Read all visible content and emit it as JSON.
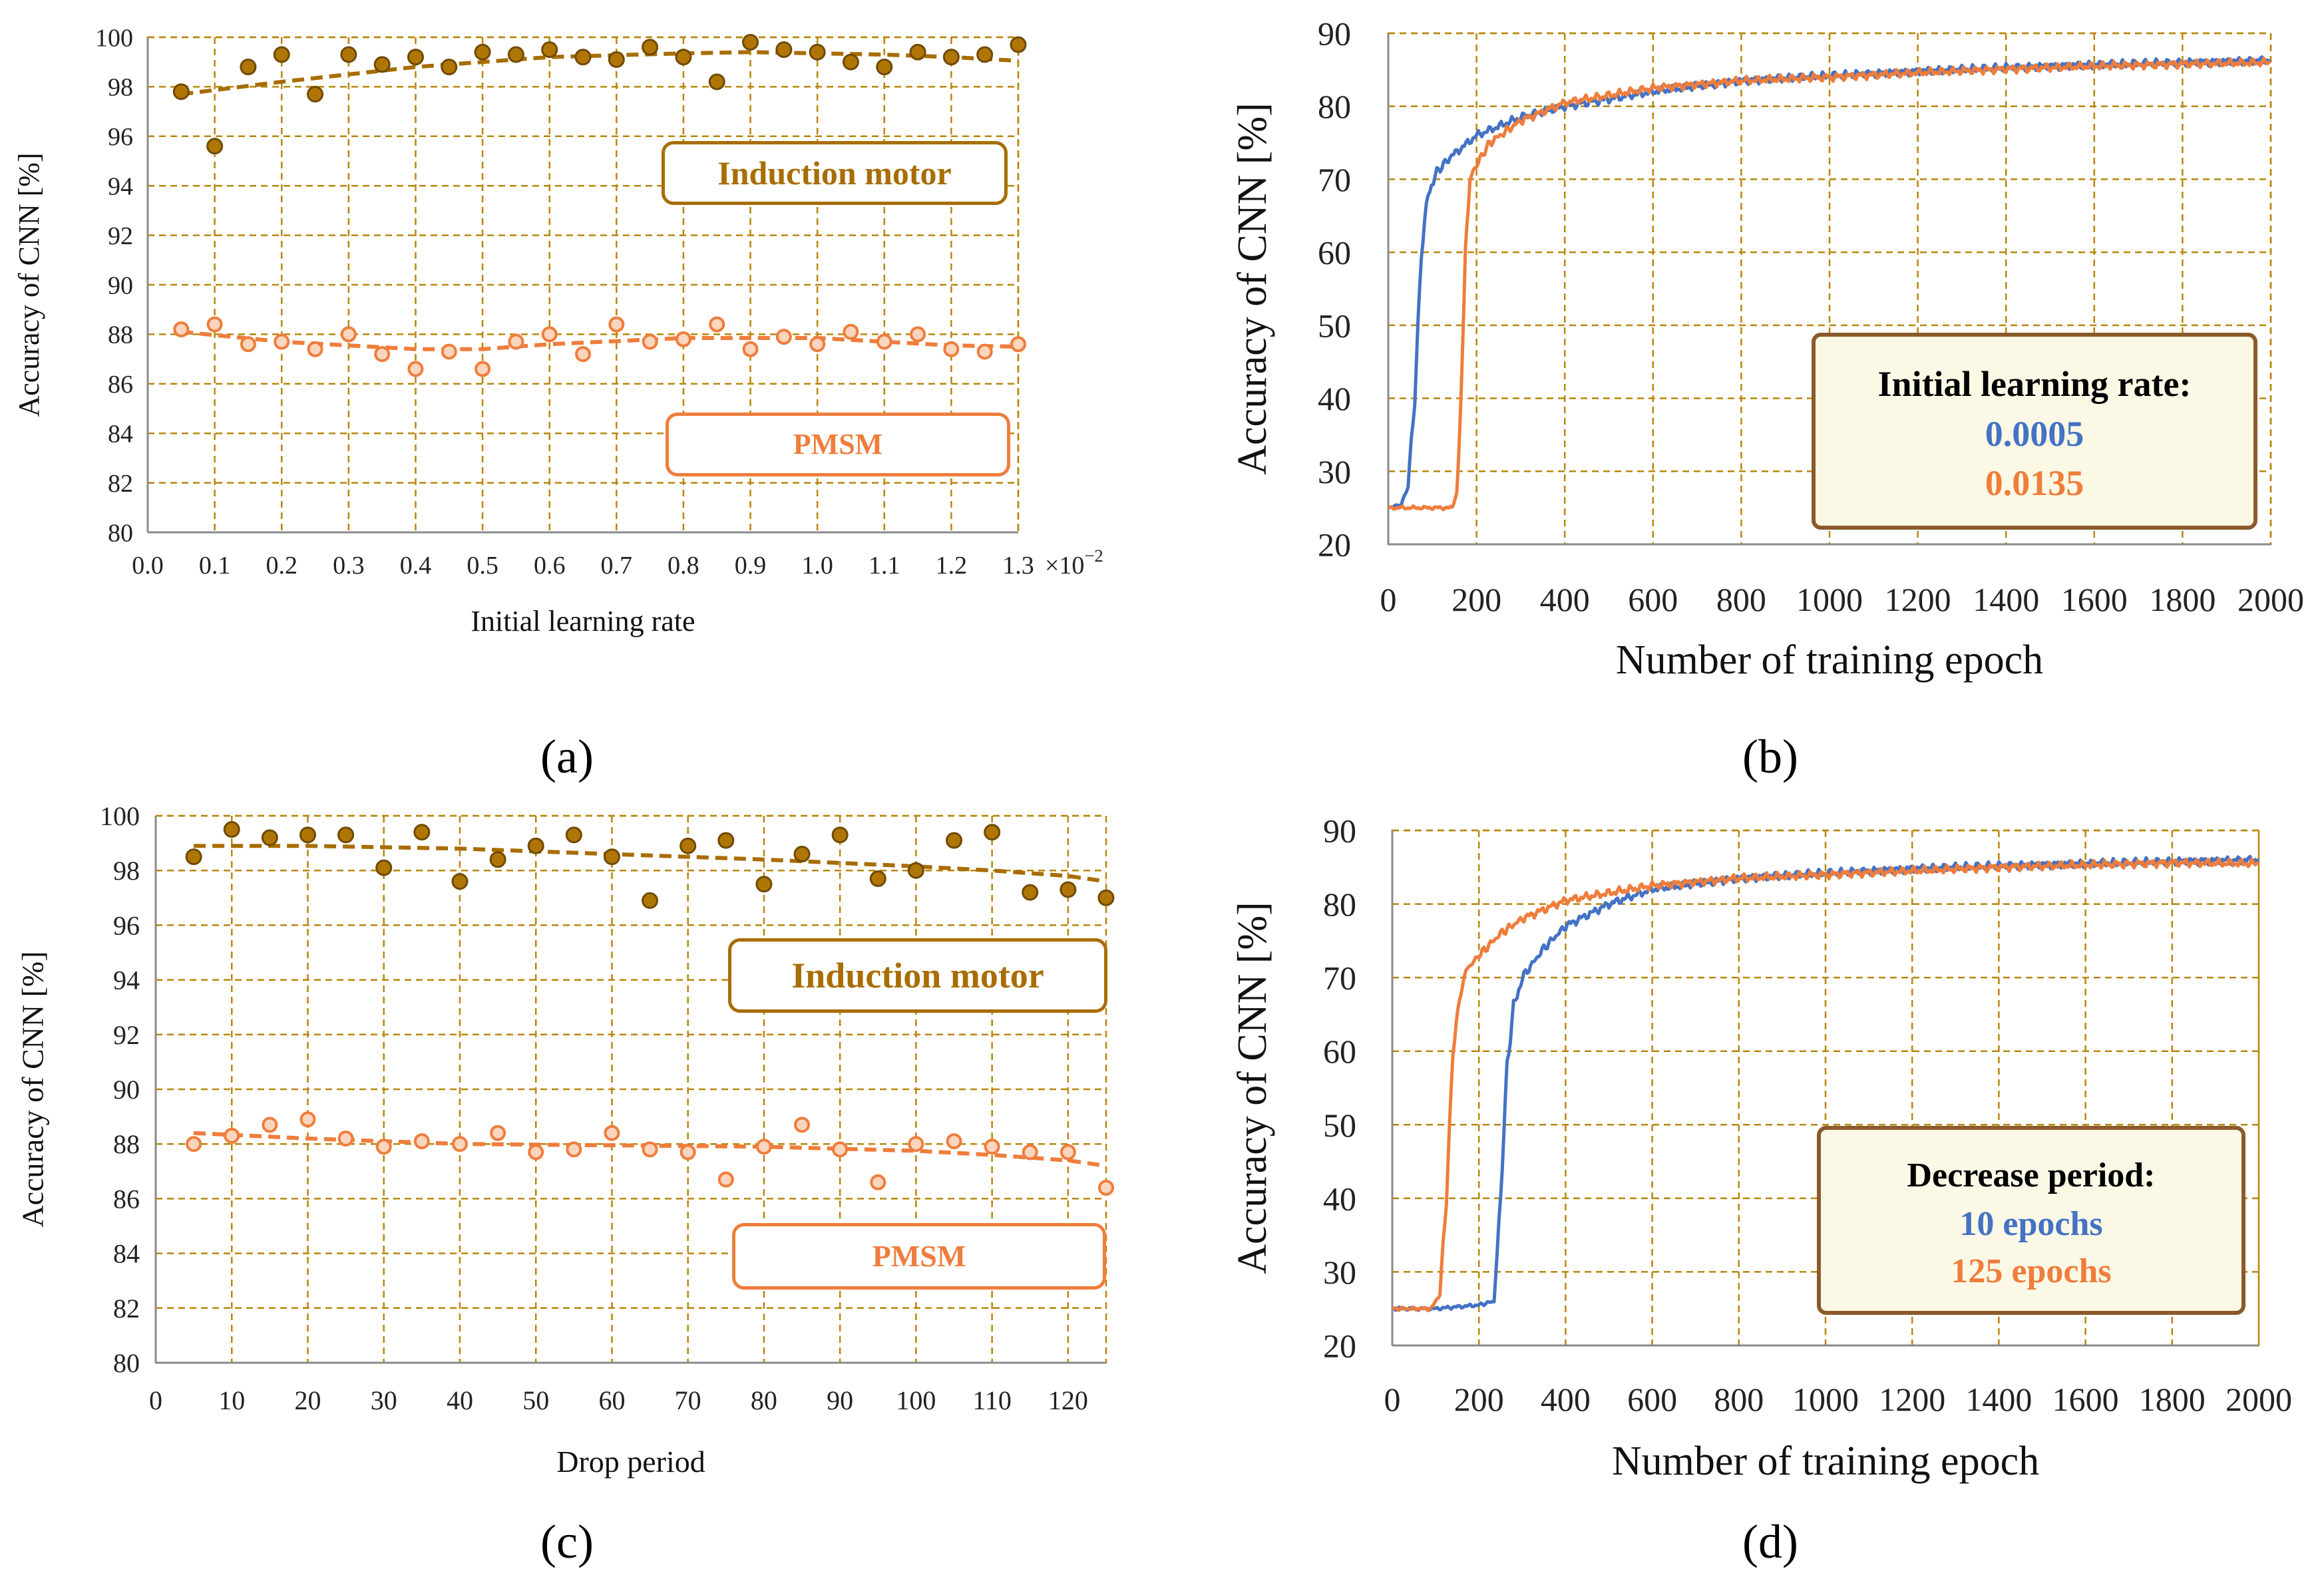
{
  "colors": {
    "induction": "#a86d00",
    "induction_fill": "#b07605",
    "pmsm": "#ef7d3c",
    "blue": "#4472c4",
    "grid": "#b8860b",
    "legend_border": "#8b5a2b"
  },
  "panel_labels": [
    "(a)",
    "(b)",
    "(c)",
    "(d)"
  ],
  "chart_data": [
    {
      "id": "a",
      "type": "scatter",
      "xlabel": "Initial learning rate",
      "ylabel": "Accuracy of CNN [%]",
      "x_multiplier": "×10",
      "x_multiplier_exp": "−2",
      "xlim": [
        0.0,
        1.3
      ],
      "ylim": [
        80,
        100
      ],
      "x_ticks": [
        "0.0",
        "0.1",
        "0.2",
        "0.3",
        "0.4",
        "0.5",
        "0.6",
        "0.7",
        "0.8",
        "0.9",
        "1.0",
        "1.1",
        "1.2",
        "1.3"
      ],
      "y_ticks": [
        "80",
        "82",
        "84",
        "86",
        "88",
        "90",
        "92",
        "94",
        "96",
        "98",
        "100"
      ],
      "series_labels": [
        "Induction motor",
        "PMSM"
      ],
      "series": [
        {
          "name": "Induction motor",
          "x": [
            0.05,
            0.1,
            0.15,
            0.2,
            0.25,
            0.3,
            0.35,
            0.4,
            0.45,
            0.5,
            0.55,
            0.6,
            0.65,
            0.7,
            0.75,
            0.8,
            0.85,
            0.9,
            0.95,
            1.0,
            1.05,
            1.1,
            1.15,
            1.2,
            1.25,
            1.3
          ],
          "y": [
            97.8,
            95.6,
            98.8,
            99.3,
            97.7,
            99.3,
            98.9,
            99.2,
            98.8,
            99.4,
            99.3,
            99.5,
            99.2,
            99.1,
            99.6,
            99.2,
            98.2,
            99.8,
            99.5,
            99.4,
            99.0,
            98.8,
            99.4,
            99.2,
            99.3,
            99.7
          ],
          "trend_x": [
            0.05,
            0.2,
            0.4,
            0.6,
            0.8,
            0.9,
            1.0,
            1.1,
            1.2,
            1.3
          ],
          "trend_y": [
            97.7,
            98.2,
            98.8,
            99.2,
            99.35,
            99.4,
            99.35,
            99.3,
            99.2,
            99.05
          ]
        },
        {
          "name": "PMSM",
          "x": [
            0.05,
            0.1,
            0.15,
            0.2,
            0.25,
            0.3,
            0.35,
            0.4,
            0.45,
            0.5,
            0.55,
            0.6,
            0.65,
            0.7,
            0.75,
            0.8,
            0.85,
            0.9,
            0.95,
            1.0,
            1.05,
            1.1,
            1.15,
            1.2,
            1.25,
            1.3
          ],
          "y": [
            88.2,
            88.4,
            87.6,
            87.7,
            87.4,
            88.0,
            87.2,
            86.6,
            87.3,
            86.6,
            87.7,
            88.0,
            87.2,
            88.4,
            87.7,
            87.8,
            88.4,
            87.4,
            87.9,
            87.6,
            88.1,
            87.7,
            88.0,
            87.4,
            87.3,
            87.6
          ],
          "trend_x": [
            0.05,
            0.2,
            0.4,
            0.5,
            0.6,
            0.8,
            1.0,
            1.1,
            1.2,
            1.3
          ],
          "trend_y": [
            88.1,
            87.7,
            87.4,
            87.4,
            87.6,
            87.85,
            87.85,
            87.7,
            87.55,
            87.5
          ]
        }
      ]
    },
    {
      "id": "b",
      "type": "line",
      "xlabel": "Number of training epoch",
      "ylabel": "Accuracy of  CNN [%]",
      "xlim": [
        0,
        2000
      ],
      "ylim": [
        20,
        90
      ],
      "x_ticks": [
        "0",
        "200",
        "400",
        "600",
        "800",
        "1000",
        "1200",
        "1400",
        "1600",
        "1800",
        "2000"
      ],
      "y_ticks": [
        "20",
        "30",
        "40",
        "50",
        "60",
        "70",
        "80",
        "90"
      ],
      "legend": {
        "title": "Initial learning rate:",
        "entries": [
          "0.0005",
          "0.0135"
        ]
      },
      "series": [
        {
          "name": "0.0005",
          "x": [
            0,
            30,
            45,
            60,
            75,
            90,
            110,
            140,
            200,
            300,
            400,
            600,
            800,
            1000,
            1200,
            1400,
            1600,
            1800,
            2000
          ],
          "y": [
            25,
            25.5,
            28,
            40,
            60,
            68,
            71,
            73,
            76,
            78.5,
            80,
            82,
            83.5,
            84.2,
            84.8,
            85.3,
            85.7,
            86,
            86.3
          ]
        },
        {
          "name": "0.0135",
          "x": [
            0,
            145,
            155,
            165,
            175,
            185,
            200,
            230,
            300,
            400,
            600,
            800,
            1000,
            1200,
            1400,
            1600,
            1800,
            2000
          ],
          "y": [
            25,
            25,
            27,
            40,
            60,
            70,
            72,
            75,
            78,
            80.5,
            82.5,
            83.5,
            84,
            84.6,
            85.1,
            85.5,
            85.8,
            86
          ]
        }
      ]
    },
    {
      "id": "c",
      "type": "scatter",
      "xlabel": "Drop period",
      "ylabel": "Accuracy of CNN [%]",
      "xlim": [
        0,
        125
      ],
      "ylim": [
        80,
        100
      ],
      "x_ticks": [
        "0",
        "10",
        "20",
        "30",
        "40",
        "50",
        "60",
        "70",
        "80",
        "90",
        "100",
        "110",
        "120"
      ],
      "y_ticks": [
        "80",
        "82",
        "84",
        "86",
        "88",
        "90",
        "92",
        "94",
        "96",
        "98",
        "100"
      ],
      "series_labels": [
        "Induction motor",
        "PMSM"
      ],
      "series": [
        {
          "name": "Induction motor",
          "x": [
            5,
            10,
            15,
            20,
            25,
            30,
            35,
            40,
            45,
            50,
            55,
            60,
            65,
            70,
            75,
            80,
            85,
            90,
            95,
            100,
            105,
            110,
            115,
            120,
            125
          ],
          "y": [
            98.5,
            99.5,
            99.2,
            99.3,
            99.3,
            98.1,
            99.4,
            97.6,
            98.4,
            98.9,
            99.3,
            98.5,
            96.9,
            98.9,
            99.1,
            97.5,
            98.6,
            99.3,
            97.7,
            98.0,
            99.1,
            99.4,
            97.2,
            97.3,
            97.0
          ],
          "trend_x": [
            5,
            20,
            40,
            60,
            80,
            100,
            110,
            120,
            125
          ],
          "trend_y": [
            98.9,
            98.9,
            98.8,
            98.6,
            98.4,
            98.15,
            98.0,
            97.8,
            97.6
          ]
        },
        {
          "name": "PMSM",
          "x": [
            5,
            10,
            15,
            20,
            25,
            30,
            35,
            40,
            45,
            50,
            55,
            60,
            65,
            70,
            75,
            80,
            85,
            90,
            95,
            100,
            105,
            110,
            115,
            120,
            125
          ],
          "y": [
            88.0,
            88.3,
            88.7,
            88.9,
            88.2,
            87.9,
            88.1,
            88.0,
            88.4,
            87.7,
            87.8,
            88.4,
            87.8,
            87.7,
            86.7,
            87.9,
            88.7,
            87.8,
            86.6,
            88.0,
            88.1,
            87.9,
            87.7,
            87.7,
            86.4
          ],
          "trend_x": [
            5,
            20,
            40,
            60,
            80,
            100,
            110,
            120,
            125
          ],
          "trend_y": [
            88.4,
            88.2,
            88.0,
            87.95,
            87.9,
            87.75,
            87.6,
            87.4,
            87.2
          ]
        }
      ]
    },
    {
      "id": "d",
      "type": "line",
      "xlabel": "Number of training epoch",
      "ylabel": "Accuracy of CNN [%]",
      "xlim": [
        0,
        2000
      ],
      "ylim": [
        20,
        90
      ],
      "x_ticks": [
        "0",
        "200",
        "400",
        "600",
        "800",
        "1000",
        "1200",
        "1400",
        "1600",
        "1800",
        "2000"
      ],
      "y_ticks": [
        "20",
        "30",
        "40",
        "50",
        "60",
        "70",
        "80",
        "90"
      ],
      "legend": {
        "title": "Decrease period:",
        "entries": [
          "10 epochs",
          "125 epochs"
        ]
      },
      "series": [
        {
          "name": "10 epochs",
          "x": [
            0,
            100,
            200,
            235,
            250,
            265,
            280,
            300,
            350,
            400,
            500,
            600,
            800,
            1000,
            1200,
            1400,
            1600,
            1800,
            2000
          ],
          "y": [
            25,
            25,
            25.5,
            26,
            40,
            58,
            66,
            70,
            74,
            77,
            80,
            82,
            83.5,
            84.2,
            84.8,
            85.2,
            85.5,
            85.8,
            86
          ]
        },
        {
          "name": "125 epochs",
          "x": [
            0,
            90,
            110,
            125,
            140,
            155,
            170,
            200,
            250,
            300,
            400,
            600,
            800,
            1000,
            1200,
            1400,
            1600,
            1800,
            2000
          ],
          "y": [
            25,
            25,
            27,
            40,
            60,
            67,
            71,
            73,
            76,
            78,
            80.5,
            82.5,
            83.5,
            84,
            84.5,
            85,
            85.3,
            85.6,
            85.5
          ]
        }
      ]
    }
  ]
}
